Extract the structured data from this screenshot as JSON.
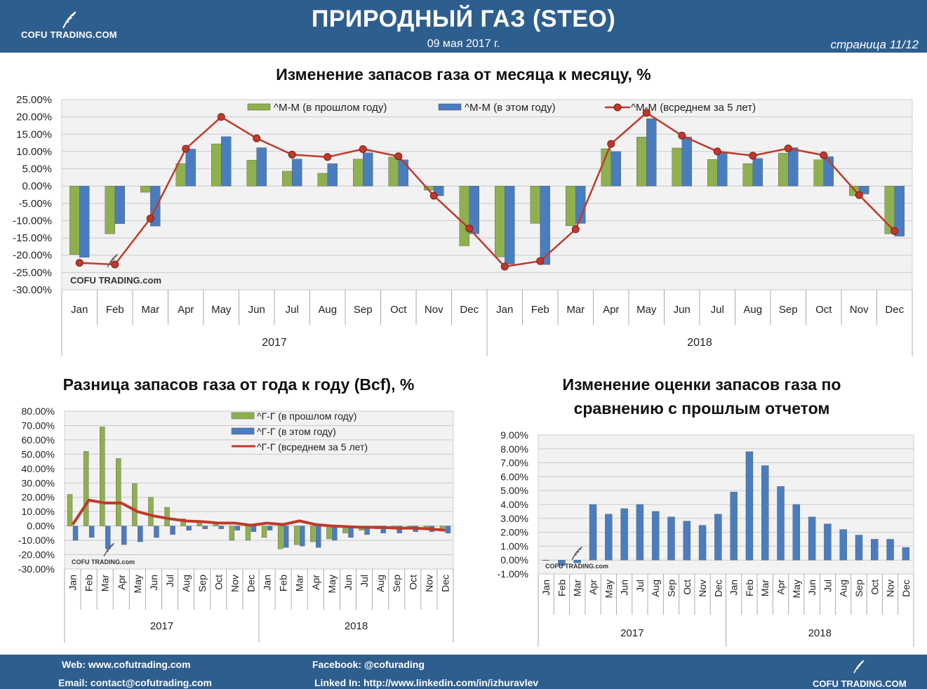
{
  "header": {
    "logo": "COFU TRADING.COM",
    "title": "ПРИРОДНЫЙ ГАЗ (STEO)",
    "date": "09 мая 2017 г.",
    "page": "страница 11/12"
  },
  "colors": {
    "header_bg": "#2e5e8e",
    "green": "#8fb04f",
    "blue": "#4a7dbf",
    "red": "#c0392b",
    "plot_bg": "#f2f2f2"
  },
  "icons": {
    "logo": "wheat-leaf-icon"
  },
  "watermark": "COFU TRADING.com",
  "chart_data": [
    {
      "type": "bar",
      "title": "Изменение запасов газа от месяца к месяцу, %",
      "categories": [
        "Jan",
        "Feb",
        "Mar",
        "Apr",
        "May",
        "Jun",
        "Jul",
        "Aug",
        "Sep",
        "Oct",
        "Nov",
        "Dec",
        "Jan",
        "Feb",
        "Mar",
        "Apr",
        "May",
        "Jun",
        "Jul",
        "Aug",
        "Sep",
        "Oct",
        "Nov",
        "Dec"
      ],
      "groups": [
        "2017",
        "2018"
      ],
      "ylim": [
        -30,
        25
      ],
      "yticks": [
        25,
        20,
        15,
        10,
        5,
        0,
        -5,
        -10,
        -15,
        -20,
        -25,
        -30
      ],
      "ytick_labels": [
        "25.00%",
        "20.00%",
        "15.00%",
        "10.00%",
        "5.00%",
        "0.00%",
        "-5.00%",
        "-10.00%",
        "-15.00%",
        "-20.00%",
        "-25.00%",
        "-30.00%"
      ],
      "grid": true,
      "legend_position": "top",
      "series": [
        {
          "name": "^M-M (в прошлом году)",
          "kind": "bar",
          "values": [
            -19.8,
            -13.8,
            -1.8,
            6.5,
            12.2,
            7.5,
            4.3,
            3.7,
            7.8,
            8.4,
            -1.2,
            -17.3,
            -20.5,
            -10.8,
            -11.5,
            10.8,
            14.2,
            11.0,
            7.7,
            6.5,
            9.5,
            7.6,
            -2.8,
            -13.8
          ]
        },
        {
          "name": "^M-M (в этом году)",
          "kind": "bar",
          "values": [
            -20.6,
            -10.9,
            -11.6,
            10.7,
            14.3,
            11.1,
            7.8,
            6.5,
            9.6,
            7.6,
            -2.8,
            -13.8,
            -22.6,
            -22.7,
            -10.8,
            10.0,
            19.5,
            14.2,
            9.5,
            8.0,
            11.1,
            8.5,
            -2.3,
            -14.5
          ]
        },
        {
          "name": "^M-M (всреднем  за 5 лет)",
          "kind": "line",
          "values": [
            -22.2,
            -22.7,
            -9.4,
            10.8,
            20.0,
            13.8,
            9.1,
            8.4,
            10.7,
            8.6,
            -2.8,
            -12.3,
            -23.3,
            -21.7,
            -12.5,
            12.2,
            21.2,
            14.6,
            10.0,
            8.8,
            10.9,
            8.9,
            -2.6,
            -13.0
          ]
        }
      ]
    },
    {
      "type": "bar",
      "title": "Разница запасов газа от года к году (Bcf), %",
      "categories": [
        "Jan",
        "Feb",
        "Mar",
        "Apr",
        "May",
        "Jun",
        "Jul",
        "Aug",
        "Sep",
        "Oct",
        "Nov",
        "Dec",
        "Jan",
        "Feb",
        "Mar",
        "Apr",
        "May",
        "Jun",
        "Jul",
        "Aug",
        "Sep",
        "Oct",
        "Nov",
        "Dec"
      ],
      "groups": [
        "2017",
        "2018"
      ],
      "ylim": [
        -30,
        80
      ],
      "yticks": [
        80,
        70,
        60,
        50,
        40,
        30,
        20,
        10,
        0,
        -10,
        -20,
        -30
      ],
      "ytick_labels": [
        "80.00%",
        "70.00%",
        "60.00%",
        "50.00%",
        "40.00%",
        "30.00%",
        "20.00%",
        "10.00%",
        "0.00%",
        "-10.00%",
        "-20.00%",
        "-30.00%"
      ],
      "grid": true,
      "legend_position": "top-right",
      "series": [
        {
          "name": "^Г-Г (в прошлом году)",
          "kind": "bar",
          "values": [
            22,
            52,
            69,
            47,
            29.5,
            20,
            13,
            5,
            3,
            1,
            -10,
            -10,
            -8,
            -16,
            -13,
            -11,
            -9,
            -5,
            -3,
            -2,
            -2,
            -2,
            -2,
            -2
          ]
        },
        {
          "name": "^Г-Г (в этом  году)",
          "kind": "bar",
          "values": [
            -10,
            -8,
            -16,
            -13,
            -11,
            -8,
            -6,
            -3,
            -2,
            -2,
            -3,
            -4,
            -3,
            -15,
            -14,
            -15,
            -10,
            -8,
            -6,
            -5,
            -5,
            -4,
            -4,
            -5
          ]
        },
        {
          "name": "^Г-Г (всреднем  за 5 лет)",
          "kind": "line",
          "values": [
            1,
            18,
            16,
            16,
            10,
            7,
            5,
            3.5,
            3,
            2,
            2,
            0.5,
            2,
            1,
            3.5,
            1,
            0,
            -0.5,
            -1,
            -1,
            -1.5,
            -1.5,
            -2,
            -3
          ]
        }
      ]
    },
    {
      "type": "bar",
      "title": "Изменение оценки запасов газа по сравнению с прошлым отчетом",
      "title_lines": [
        "Изменение оценки запасов газа по",
        "сравнению с прошлым отчетом"
      ],
      "categories": [
        "Jan",
        "Feb",
        "Mar",
        "Apr",
        "May",
        "Jun",
        "Jul",
        "Aug",
        "Sep",
        "Oct",
        "Nov",
        "Dec",
        "Jan",
        "Feb",
        "Mar",
        "Apr",
        "May",
        "Jun",
        "Jul",
        "Aug",
        "Sep",
        "Oct",
        "Nov",
        "Dec"
      ],
      "groups": [
        "2017",
        "2018"
      ],
      "ylim": [
        -1,
        9
      ],
      "yticks": [
        9,
        8,
        7,
        6,
        5,
        4,
        3,
        2,
        1,
        0,
        -1
      ],
      "ytick_labels": [
        "9.00%",
        "8.00%",
        "7.00%",
        "6.00%",
        "5.00%",
        "4.00%",
        "3.00%",
        "2.00%",
        "1.00%",
        "0.00%",
        "-1.00%"
      ],
      "grid": true,
      "series": [
        {
          "kind": "bar",
          "values": [
            0,
            -0.4,
            -0.2,
            4.0,
            3.3,
            3.7,
            4.0,
            3.5,
            3.1,
            2.8,
            2.5,
            3.3,
            4.9,
            7.8,
            6.8,
            5.3,
            4.0,
            3.1,
            2.6,
            2.2,
            1.8,
            1.5,
            1.5,
            0.9
          ]
        }
      ]
    }
  ],
  "footer": {
    "web": "Web: www.cofutrading.com",
    "email": "Email: contact@cofutrading.com",
    "facebook": "Facebook: @cofurading",
    "linkedin": "Linked In: http://www.linkedin.com/in/izhuravlev",
    "logo": "COFU TRADING.COM"
  }
}
